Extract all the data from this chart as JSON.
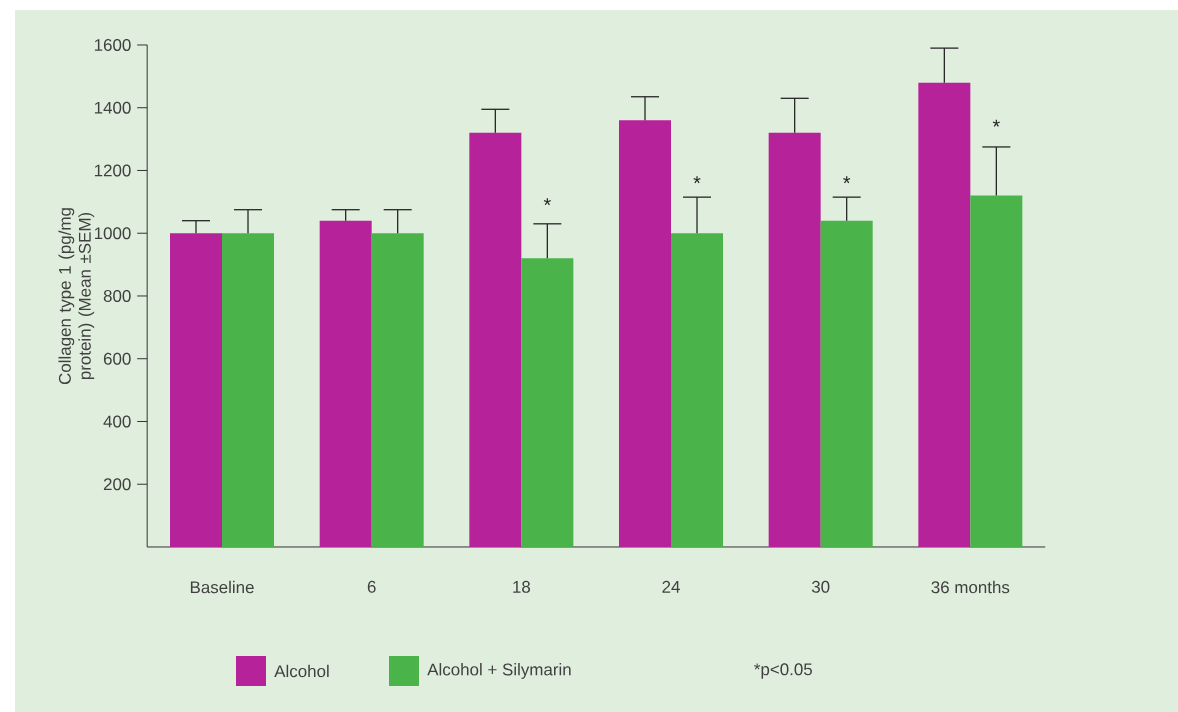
{
  "chart_data": {
    "type": "bar",
    "ylabel": "Collagen type 1 (pg/mg protein) (Mean ±SEM)",
    "categories": [
      "Baseline",
      "6",
      "18",
      "24",
      "30",
      "36 months"
    ],
    "series": [
      {
        "name": "Alcohol",
        "color": "#b5229a",
        "values": [
          1000,
          1040,
          1320,
          1360,
          1320,
          1480
        ],
        "errors": [
          [
            1000,
            1040
          ],
          [
            1040,
            1075
          ],
          [
            1320,
            1395
          ],
          [
            1360,
            1435
          ],
          [
            1320,
            1430
          ],
          [
            1480,
            1590
          ]
        ]
      },
      {
        "name": "Alcohol + Silymarin",
        "color": "#4ab34a",
        "values": [
          1000,
          1000,
          920,
          1000,
          1040,
          1120
        ],
        "errors": [
          [
            1000,
            1075
          ],
          [
            1000,
            1075
          ],
          [
            920,
            1030
          ],
          [
            1000,
            1115
          ],
          [
            1040,
            1115
          ],
          [
            1120,
            1275
          ]
        ]
      }
    ],
    "ylim": [
      0,
      1600
    ],
    "yticks": [
      200,
      400,
      600,
      800,
      1000,
      1200,
      1400,
      1600
    ],
    "legend": "bottom",
    "grid": false,
    "annotations": [
      {
        "text": "*",
        "x": "18",
        "y": 1090
      },
      {
        "text": "*",
        "x": "24",
        "y": 1160
      },
      {
        "text": "*",
        "x": "30",
        "y": 1160
      },
      {
        "text": "*",
        "x": "36 months",
        "y": 1340
      },
      "*p<0.05"
    ]
  }
}
